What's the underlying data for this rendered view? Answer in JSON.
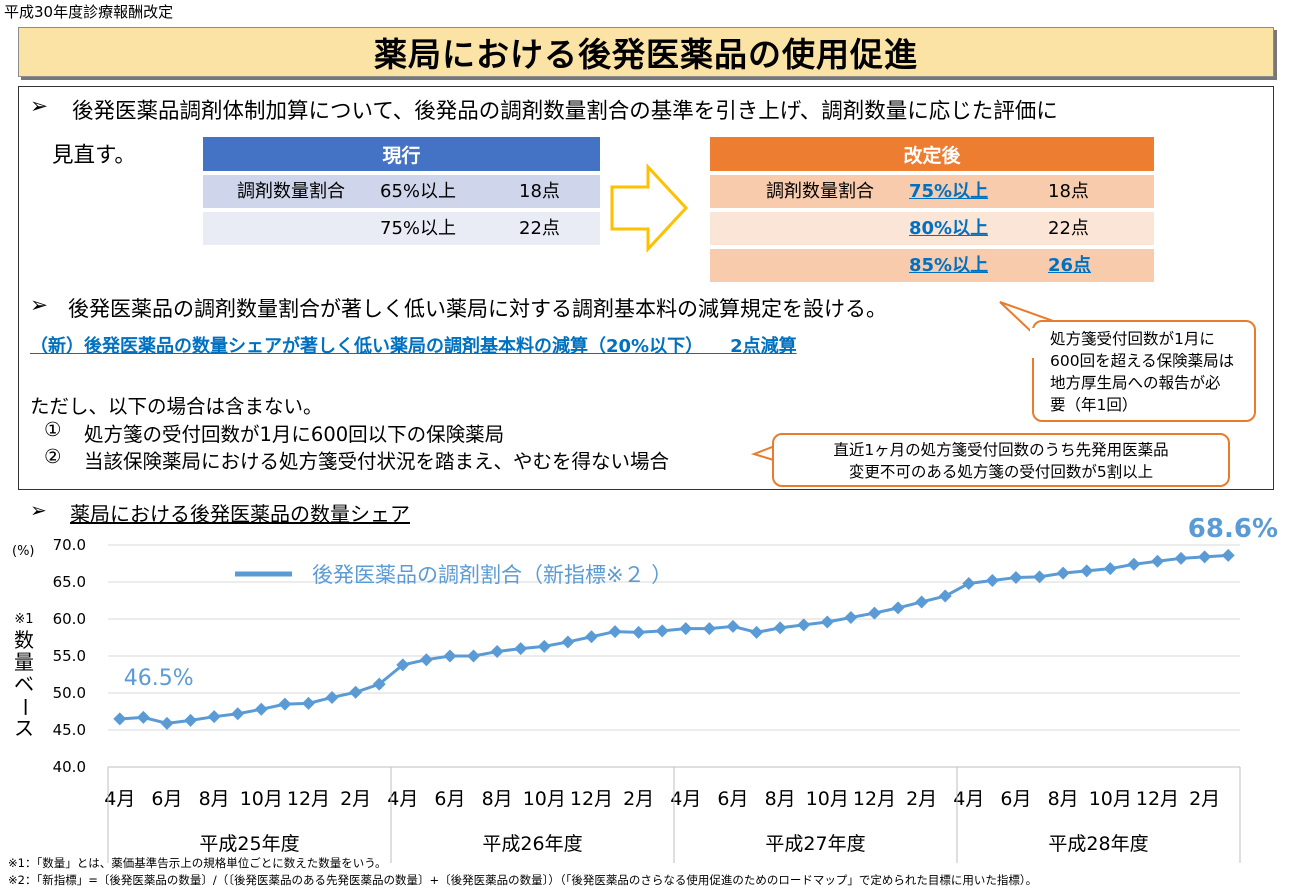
{
  "header_label": "平成30年度診療報酬改定",
  "title": "薬局における後発医薬品の使用促進",
  "bullet1": {
    "marker": "➢",
    "text_line1": "後発医薬品調剤体制加算について、後発品の調剤数量割合の基準を引き上げ、調剤数量に応じた評価に",
    "text_line2": "見直す。"
  },
  "current_table": {
    "header": "現行",
    "rows": [
      {
        "label": "調剤数量割合",
        "threshold": "65%以上",
        "points": "18点"
      },
      {
        "label": "",
        "threshold": "75%以上",
        "points": "22点"
      }
    ]
  },
  "revised_table": {
    "header": "改定後",
    "rows": [
      {
        "label": "調剤数量割合",
        "threshold": "75%以上",
        "points": "18点"
      },
      {
        "label": "",
        "threshold": "80%以上",
        "points": "22点"
      },
      {
        "label": "",
        "threshold": "85%以上",
        "points": "26点"
      }
    ]
  },
  "bullet2": {
    "marker": "➢",
    "text": "後発医薬品の調剤数量割合が著しく低い薬局に対する調剤基本料の減算規定を設ける。",
    "new_item": "（新）後発医薬品の数量シェアが著しく低い薬局の調剤基本料の減算（20%以下）　　2点減算"
  },
  "callout_report": {
    "lines": [
      "処方箋受付回数が1月に",
      "600回を超える保険薬局は",
      "地方厚生局への報告が必",
      "要（年1回）"
    ]
  },
  "exceptions": {
    "intro": "ただし、以下の場合は含まない。",
    "items": [
      {
        "num": "①",
        "text": "処方箋の受付回数が1月に600回以下の保険薬局"
      },
      {
        "num": "②",
        "text": "当該保険薬局における処方箋受付状況を踏まえ、やむを得ない場合"
      }
    ]
  },
  "callout_condition": {
    "lines": [
      "直近1ヶ月の処方箋受付回数のうち先発用医薬品",
      "変更不可のある処方箋の受付回数が5割以上"
    ]
  },
  "chart_heading": {
    "marker": "➢",
    "text": "薬局における後発医薬品の数量シェア"
  },
  "chart_data": {
    "type": "line",
    "ylabel_note": "※1",
    "ylabel": "数量ベース",
    "yunit": "(%)",
    "ylim": [
      40.0,
      70.0
    ],
    "yticks": [
      "70.0",
      "65.0",
      "60.0",
      "55.0",
      "50.0",
      "45.0",
      "40.0"
    ],
    "grid": true,
    "legend_position": "top-left",
    "series": [
      {
        "name": "後発医薬品の調剤割合（新指標※２ ）",
        "color": "#5b9bd5",
        "values": [
          46.5,
          46.7,
          45.9,
          46.3,
          46.8,
          47.2,
          47.8,
          48.5,
          48.6,
          49.4,
          50.1,
          51.2,
          53.8,
          54.5,
          55.0,
          55.0,
          55.6,
          56.0,
          56.3,
          56.9,
          57.6,
          58.3,
          58.2,
          58.4,
          58.7,
          58.7,
          59.0,
          58.2,
          58.8,
          59.2,
          59.6,
          60.2,
          60.8,
          61.5,
          62.3,
          63.1,
          64.8,
          65.2,
          65.6,
          65.7,
          66.2,
          66.5,
          66.8,
          67.4,
          67.8,
          68.2,
          68.4,
          68.6
        ]
      }
    ],
    "month_labels": [
      "4月",
      "6月",
      "8月",
      "10月",
      "12月",
      "2月"
    ],
    "fiscal_years": [
      "平成25年度",
      "平成26年度",
      "平成27年度",
      "平成28年度"
    ],
    "annotations": {
      "first": "46.5%",
      "last": "68.6%"
    }
  },
  "footnotes": [
    "※1：「数量」とは、薬価基準告示上の規格単位ごとに数えた数量をいう。",
    "※2：「新指標」=〔後発医薬品の数量〕/（〔後発医薬品のある先発医薬品の数量〕+〔後発医薬品の数量〕）（「後発医薬品のさらなる使用促進のためのロードマップ」で定められた目標に用いた指標）。"
  ],
  "colors": {
    "title_bg": "#fbe3a6",
    "current_header": "#4472c4",
    "current_row_1": "#cfd5ea",
    "current_row_2": "#e9ebf5",
    "revised_header": "#ed7d31",
    "revised_row_1": "#f8cbad",
    "revised_row_2": "#fbe5d6",
    "arrow_outline": "#ffc000",
    "callout_border": "#e87c2c",
    "link": "#0070c0"
  }
}
